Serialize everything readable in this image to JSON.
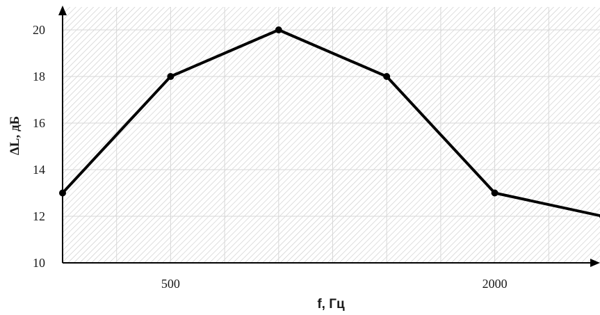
{
  "chart_data": {
    "type": "line",
    "xlabel": "f, Гц",
    "ylabel": "ΔL, дБ",
    "x_tick_labels": [
      {
        "index": 1,
        "label": "500"
      },
      {
        "index": 4,
        "label": "2000"
      }
    ],
    "y_ticks": [
      10,
      12,
      14,
      16,
      18,
      20
    ],
    "ylim": [
      10,
      21
    ],
    "grid": true,
    "background": "hatched",
    "series": [
      {
        "values": [
          {
            "index": 0,
            "y": 13
          },
          {
            "index": 1,
            "y": 18
          },
          {
            "index": 2,
            "y": 20
          },
          {
            "index": 3,
            "y": 18
          },
          {
            "index": 4,
            "y": 13
          },
          {
            "index": 5,
            "y": 12
          }
        ],
        "color": "#000000",
        "marker": "circle"
      }
    ]
  }
}
